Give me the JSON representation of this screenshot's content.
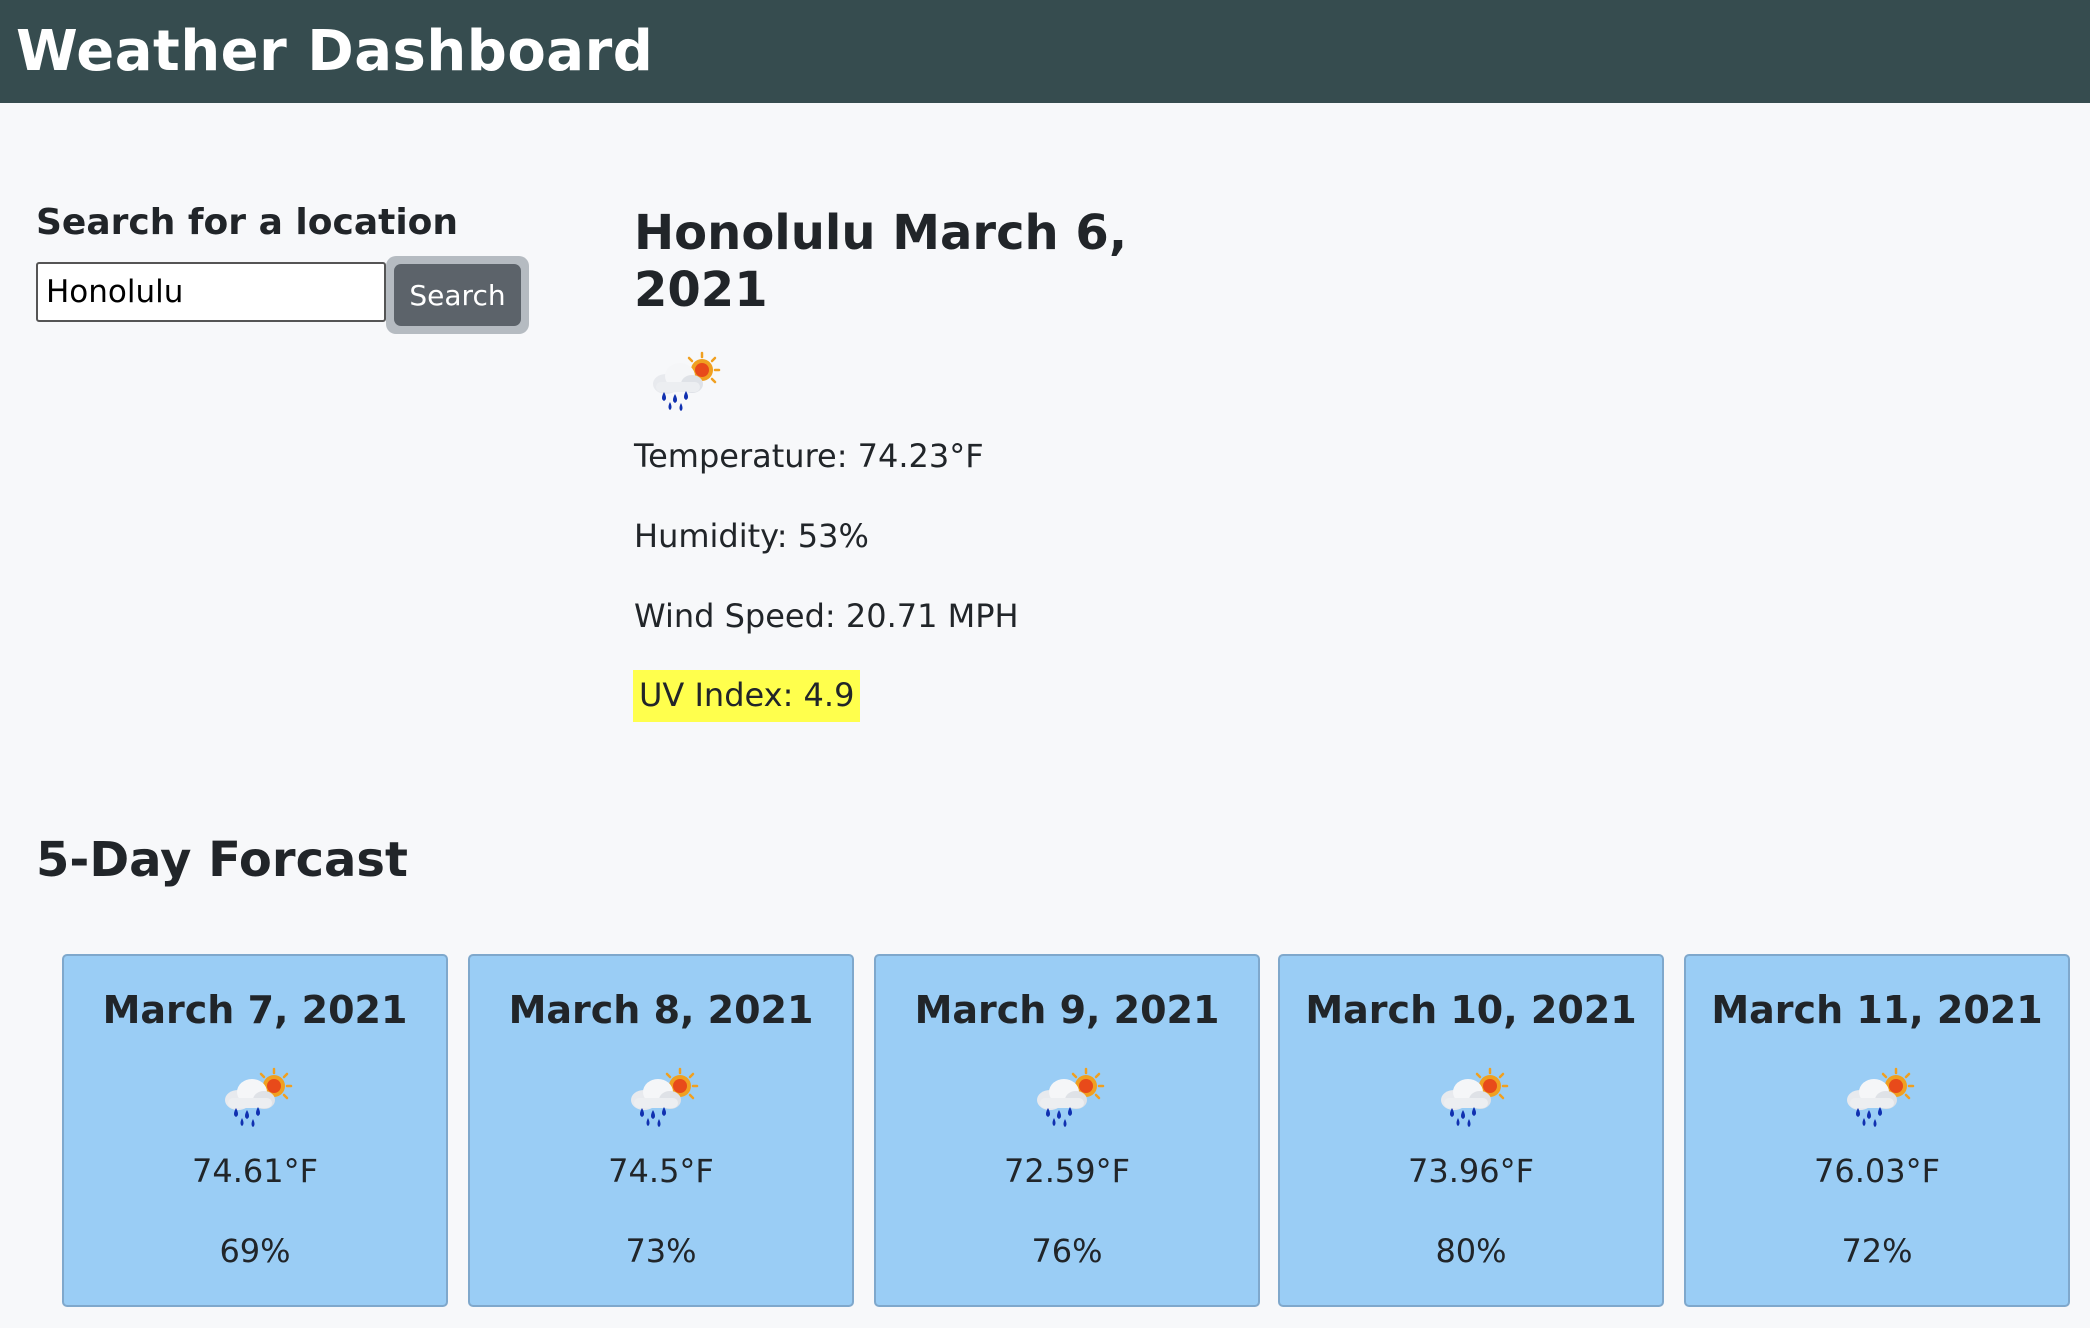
{
  "header": {
    "title": "Weather Dashboard"
  },
  "search": {
    "label": "Search for a location",
    "value": "Honolulu",
    "button_label": "Search"
  },
  "current": {
    "title": "Honolulu March 6, 2021",
    "icon": "rain-cloud-sun-icon",
    "temperature": "Temperature: 74.23°F",
    "humidity": "Humidity: 53%",
    "wind": "Wind Speed: 20.71 MPH",
    "uv": "UV Index: 4.9",
    "uv_color": "#ffff4d"
  },
  "forecast": {
    "title": "5-Day Forcast",
    "card_color": "#9acdf5",
    "days": [
      {
        "date": "March 7, 2021",
        "icon": "rain-cloud-sun-icon",
        "temp": "74.61°F",
        "humidity": "69%"
      },
      {
        "date": "March 8, 2021",
        "icon": "rain-cloud-sun-icon",
        "temp": "74.5°F",
        "humidity": "73%"
      },
      {
        "date": "March 9, 2021",
        "icon": "rain-cloud-sun-icon",
        "temp": "72.59°F",
        "humidity": "76%"
      },
      {
        "date": "March 10, 2021",
        "icon": "rain-cloud-sun-icon",
        "temp": "73.96°F",
        "humidity": "80%"
      },
      {
        "date": "March 11, 2021",
        "icon": "rain-cloud-sun-icon",
        "temp": "76.03°F",
        "humidity": "72%"
      }
    ]
  },
  "colors": {
    "header_bg": "#364c4f",
    "page_bg": "#f7f8fa",
    "button_bg": "#5c636a"
  }
}
